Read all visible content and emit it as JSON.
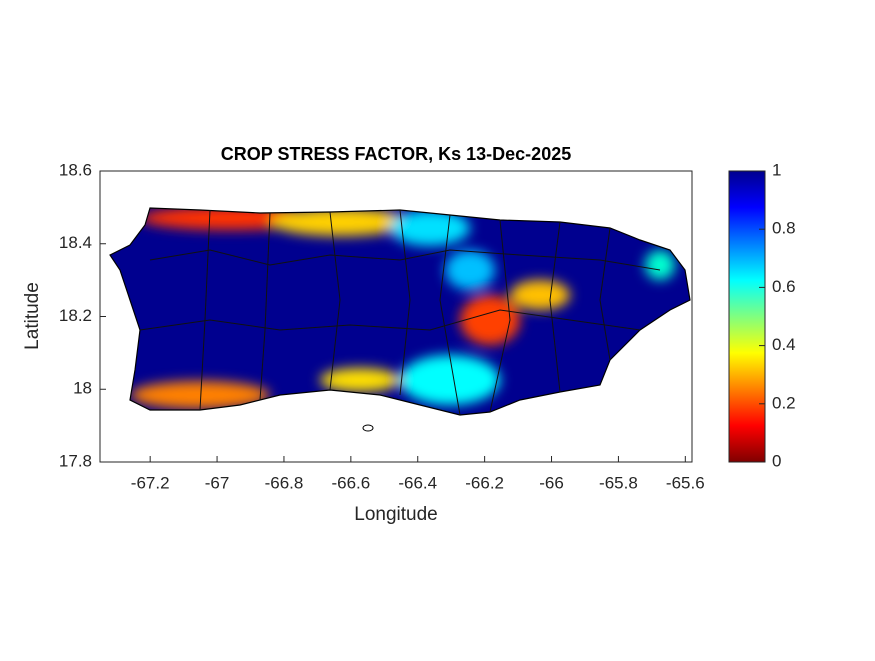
{
  "title": "CROP STRESS FACTOR, Ks  13-Dec-2025",
  "xlabel": "Longitude",
  "ylabel": "Latitude",
  "xlim": [
    -67.35,
    -65.58
  ],
  "ylim": [
    17.8,
    18.6
  ],
  "xticks": [
    -67.2,
    -67,
    -66.8,
    -66.6,
    -66.4,
    -66.2,
    -66,
    -65.8,
    -65.6
  ],
  "yticks": [
    17.8,
    18,
    18.2,
    18.4,
    18.6
  ],
  "colorbar": {
    "lim": [
      0,
      1
    ],
    "ticks": [
      0,
      0.2,
      0.4,
      0.6,
      0.8,
      1
    ]
  }
}
